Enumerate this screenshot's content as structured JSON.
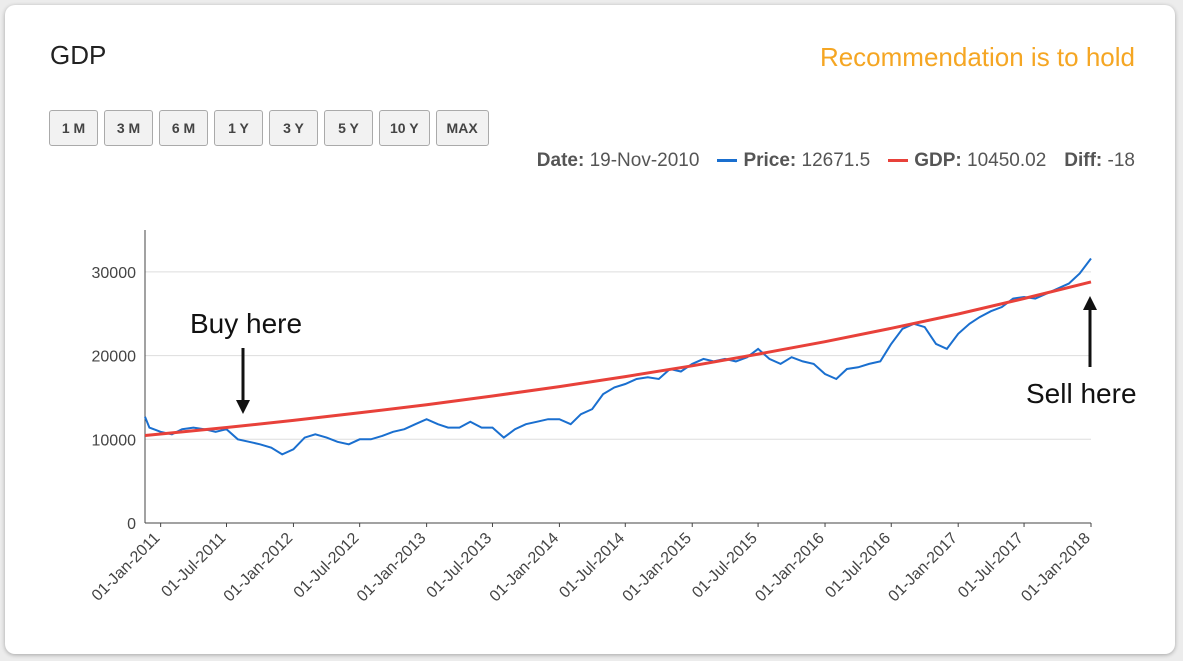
{
  "header": {
    "title": "GDP",
    "recommendation": "Recommendation is to hold"
  },
  "range_buttons": [
    "1 M",
    "3 M",
    "6 M",
    "1 Y",
    "3 Y",
    "5 Y",
    "10 Y",
    "MAX"
  ],
  "readout": [
    {
      "label": "Date",
      "value": "19-Nov-2010"
    },
    {
      "label": "Price",
      "value": 12671.5
    },
    {
      "label": "GDP",
      "value": 10450.02
    },
    {
      "label": "Diff",
      "value": -18
    }
  ],
  "chart_data": {
    "type": "line",
    "annotations": [
      "Buy here",
      "Sell here"
    ],
    "xlim": [
      "19-Nov-2010",
      "01-Jan-2018"
    ],
    "xticks": [
      "01-Jan-2011",
      "01-Jul-2011",
      "01-Jan-2012",
      "01-Jul-2012",
      "01-Jan-2013",
      "01-Jul-2013",
      "01-Jan-2014",
      "01-Jul-2014",
      "01-Jan-2015",
      "01-Jul-2015",
      "01-Jan-2016",
      "01-Jul-2016",
      "01-Jan-2017",
      "01-Jul-2017",
      "01-Jan-2018"
    ],
    "ylim": [
      0,
      35000
    ],
    "yticks": [
      0,
      10000,
      20000,
      30000
    ],
    "grid": true,
    "series": [
      {
        "name": "Price",
        "color": "#1a6fcf",
        "x": [
          "19-Nov-2010",
          "01-Dec-2010",
          "01-Jan-2011",
          "01-Feb-2011",
          "01-Mar-2011",
          "01-Apr-2011",
          "01-May-2011",
          "01-Jun-2011",
          "01-Jul-2011",
          "01-Aug-2011",
          "01-Sep-2011",
          "01-Oct-2011",
          "01-Nov-2011",
          "01-Dec-2011",
          "01-Jan-2012",
          "01-Feb-2012",
          "01-Mar-2012",
          "01-Apr-2012",
          "01-May-2012",
          "01-Jun-2012",
          "01-Jul-2012",
          "01-Aug-2012",
          "01-Sep-2012",
          "01-Oct-2012",
          "01-Nov-2012",
          "01-Dec-2012",
          "01-Jan-2013",
          "01-Feb-2013",
          "01-Mar-2013",
          "01-Apr-2013",
          "01-May-2013",
          "01-Jun-2013",
          "01-Jul-2013",
          "01-Aug-2013",
          "01-Sep-2013",
          "01-Oct-2013",
          "01-Nov-2013",
          "01-Dec-2013",
          "01-Jan-2014",
          "01-Feb-2014",
          "01-Mar-2014",
          "01-Apr-2014",
          "01-May-2014",
          "01-Jun-2014",
          "01-Jul-2014",
          "01-Aug-2014",
          "01-Sep-2014",
          "01-Oct-2014",
          "01-Nov-2014",
          "01-Dec-2014",
          "01-Jan-2015",
          "01-Feb-2015",
          "01-Mar-2015",
          "01-Apr-2015",
          "01-May-2015",
          "01-Jun-2015",
          "01-Jul-2015",
          "01-Aug-2015",
          "01-Sep-2015",
          "01-Oct-2015",
          "01-Nov-2015",
          "01-Dec-2015",
          "01-Jan-2016",
          "01-Feb-2016",
          "01-Mar-2016",
          "01-Apr-2016",
          "01-May-2016",
          "01-Jun-2016",
          "01-Jul-2016",
          "01-Aug-2016",
          "01-Sep-2016",
          "01-Oct-2016",
          "01-Nov-2016",
          "01-Dec-2016",
          "01-Jan-2017",
          "01-Feb-2017",
          "01-Mar-2017",
          "01-Apr-2017",
          "01-May-2017",
          "01-Jun-2017",
          "01-Jul-2017",
          "01-Aug-2017",
          "01-Sep-2017",
          "01-Oct-2017",
          "01-Nov-2017",
          "01-Dec-2017",
          "01-Jan-2018"
        ],
        "values": [
          12700,
          11400,
          10900,
          10600,
          11200,
          11400,
          11200,
          10900,
          11200,
          10000,
          9700,
          9400,
          9000,
          8200,
          8800,
          10200,
          10600,
          10200,
          9700,
          9400,
          10000,
          10000,
          10400,
          10900,
          11200,
          11800,
          12400,
          11800,
          11400,
          11400,
          12100,
          11400,
          11400,
          10200,
          11200,
          11800,
          12100,
          12400,
          12400,
          11800,
          13000,
          13600,
          15400,
          16200,
          16600,
          17200,
          17400,
          17200,
          18400,
          18100,
          19000,
          19600,
          19300,
          19600,
          19300,
          19800,
          20800,
          19600,
          19000,
          19800,
          19300,
          19000,
          17800,
          17200,
          18400,
          18600,
          19000,
          19300,
          21400,
          23200,
          23800,
          23400,
          21400,
          20800,
          22600,
          23800,
          24600,
          25300,
          25800,
          26800,
          27000,
          26800,
          27400,
          28000,
          28600,
          29800,
          31600
        ]
      },
      {
        "name": "GDP",
        "color": "#e8413a",
        "x": [
          "19-Nov-2010",
          "01-Jan-2011",
          "01-Jul-2011",
          "01-Jan-2012",
          "01-Jul-2012",
          "01-Jan-2013",
          "01-Jul-2013",
          "01-Jan-2014",
          "01-Jul-2014",
          "01-Jan-2015",
          "01-Jul-2015",
          "01-Jan-2016",
          "01-Jul-2016",
          "01-Jan-2017",
          "01-Jul-2017",
          "01-Jan-2018"
        ],
        "values": [
          10450,
          10630,
          11410,
          12250,
          13160,
          14130,
          15170,
          16290,
          17490,
          18780,
          20170,
          21660,
          23260,
          24970,
          26820,
          28800
        ]
      }
    ]
  }
}
